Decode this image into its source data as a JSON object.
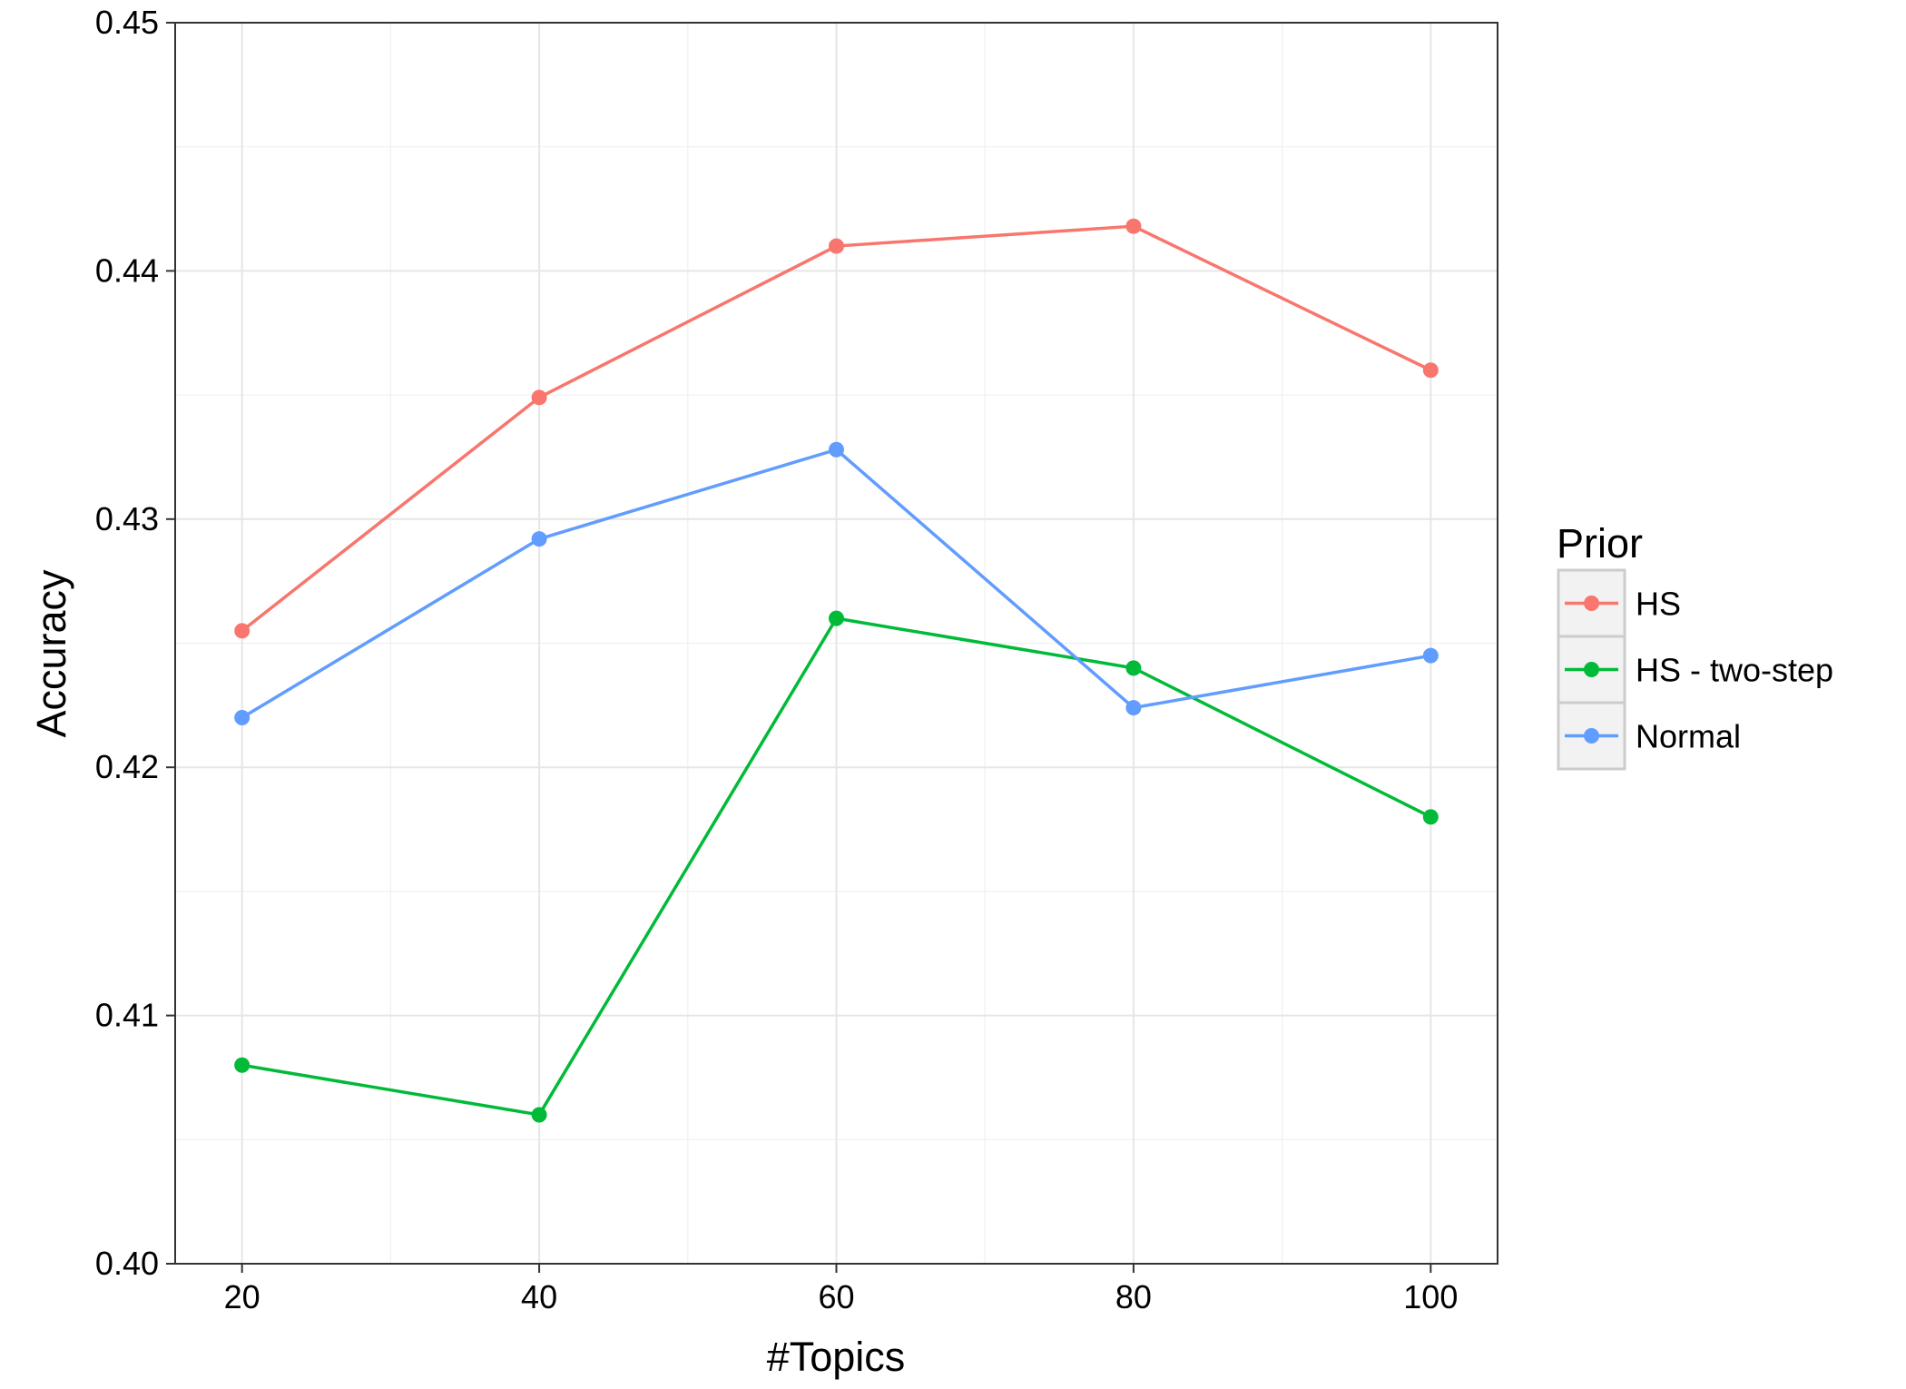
{
  "chart_data": {
    "type": "line",
    "title": "",
    "xlabel": "#Topics",
    "ylabel": "Accuracy",
    "x": [
      20,
      40,
      60,
      80,
      100
    ],
    "xlim": [
      15.5,
      104.5
    ],
    "ylim": [
      0.4,
      0.45
    ],
    "xticks": [
      "20",
      "40",
      "60",
      "80",
      "100"
    ],
    "yticks": [
      "0.40",
      "0.41",
      "0.42",
      "0.43",
      "0.44",
      "0.45"
    ],
    "grid": true,
    "legend": {
      "title": "Prior",
      "placement": "right"
    },
    "series": [
      {
        "name": "HS",
        "color": "#F8766D",
        "values": [
          0.4255,
          0.4349,
          0.441,
          0.4418,
          0.436
        ]
      },
      {
        "name": "HS - two-step",
        "color": "#00BA38",
        "values": [
          0.408,
          0.406,
          0.426,
          0.424,
          0.418
        ]
      },
      {
        "name": "Normal",
        "color": "#619CFF",
        "values": [
          0.422,
          0.4292,
          0.4328,
          0.4224,
          0.4245
        ]
      }
    ]
  }
}
